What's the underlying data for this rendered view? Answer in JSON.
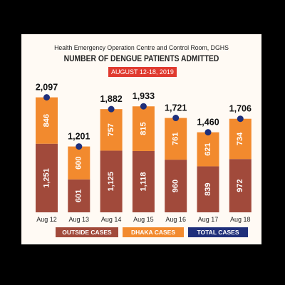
{
  "header": {
    "source": "Health Emergency Operation Centre and Control Room, DGHS",
    "title": "NUMBER OF DENGUE PATIENTS ADMITTED",
    "date_range": "AUGUST 12-18, 2019"
  },
  "colors": {
    "outside": "#a14a3b",
    "dhaka": "#f28a2e",
    "total_dot": "#1f2f7a",
    "date_pill": "#e03a2f"
  },
  "legend": {
    "outside": "OUTSIDE CASES",
    "dhaka": "DHAKA CASES",
    "total": "TOTAL CASES"
  },
  "chart_data": {
    "type": "bar",
    "stacked": true,
    "categories": [
      "Aug 12",
      "Aug 13",
      "Aug 14",
      "Aug 15",
      "Aug 16",
      "Aug 17",
      "Aug 18"
    ],
    "series": [
      {
        "name": "OUTSIDE CASES",
        "values": [
          1251,
          601,
          1125,
          1118,
          960,
          839,
          972
        ]
      },
      {
        "name": "DHAKA CASES",
        "values": [
          846,
          600,
          757,
          815,
          761,
          621,
          734
        ]
      }
    ],
    "totals": {
      "name": "TOTAL CASES",
      "values": [
        "2,097",
        "1,201",
        "1,882",
        "1,933",
        "1,721",
        "1,460",
        "1,706"
      ]
    },
    "data_labels": {
      "outside": [
        "1,251",
        "601",
        "1,125",
        "1,118",
        "960",
        "839",
        "972"
      ],
      "dhaka": [
        "846",
        "600",
        "757",
        "815",
        "761",
        "621",
        "734"
      ]
    },
    "ylim": [
      0,
      2300
    ],
    "grid": false,
    "legend_position": "bottom"
  }
}
